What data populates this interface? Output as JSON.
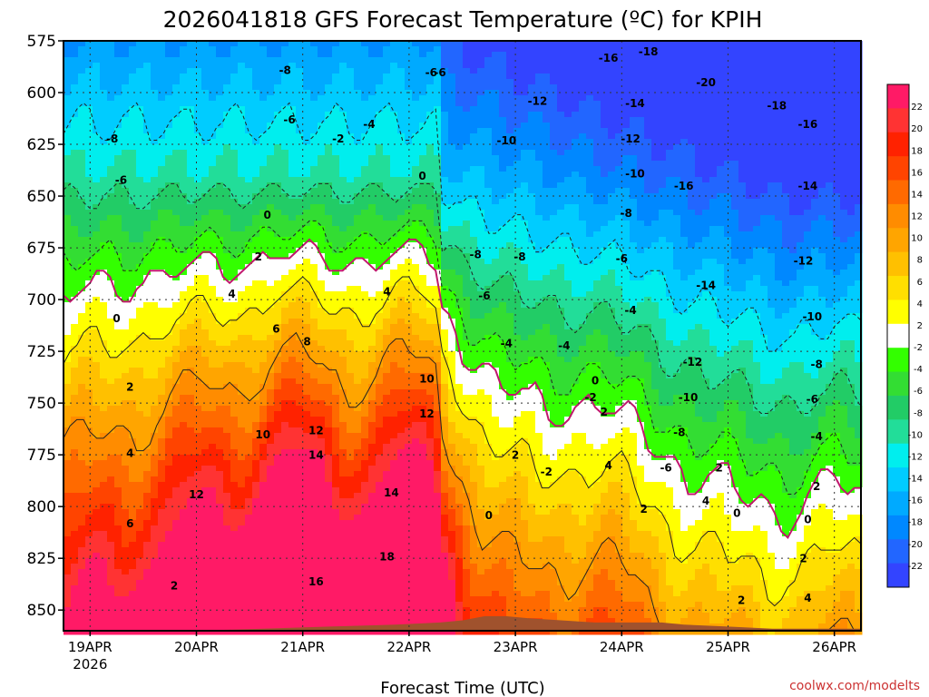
{
  "chart_data": {
    "type": "contour-time-height",
    "title": "2026041818 GFS Forecast Temperature (ºC) for KPIH",
    "xlabel": "Forecast Time (UTC)",
    "credit": "coolwx.com/modelts",
    "y_axis": {
      "quantity": "pressure (hPa)",
      "range": [
        575,
        860
      ],
      "ticks": [
        "575",
        "600",
        "625",
        "650",
        "675",
        "700",
        "725",
        "750",
        "775",
        "800",
        "825",
        "850"
      ]
    },
    "x_axis": {
      "range_hours": [
        0,
        180
      ],
      "ticks": [
        "19APR",
        "20APR",
        "21APR",
        "22APR",
        "23APR",
        "24APR",
        "25APR",
        "26APR"
      ],
      "year_label": "2026"
    },
    "colorbar": {
      "labels": [
        "22",
        "20",
        "18",
        "16",
        "14",
        "12",
        "10",
        "8",
        "6",
        "4",
        "2",
        "-2",
        "-4",
        "-6",
        "-8",
        "-10",
        "-12",
        "-14",
        "-16",
        "-18",
        "-20",
        "-22"
      ],
      "colors": [
        "#ff1a66",
        "#ff3333",
        "#ff2200",
        "#ff4400",
        "#ff6a00",
        "#ff8c00",
        "#ffa500",
        "#ffc000",
        "#ffdf00",
        "#ffff00",
        "#ffffff",
        "#33ff00",
        "#33dd33",
        "#22cc66",
        "#22dd99",
        "#00eeee",
        "#00ccff",
        "#00aaff",
        "#0088ff",
        "#2266ff",
        "#3344ff"
      ]
    },
    "surface_pressure_hpa": [
      860,
      860,
      860,
      859,
      858,
      857,
      856,
      855,
      853,
      853,
      854,
      856,
      856,
      856,
      857,
      858,
      859,
      859,
      859
    ],
    "surface_pressure_hours": [
      0,
      15,
      30,
      45,
      60,
      75,
      85,
      90,
      95,
      100,
      105,
      120,
      130,
      135,
      140,
      150,
      160,
      170,
      180
    ],
    "contour_labels": [
      {
        "t": "-8",
        "hour": 50,
        "p": 591
      },
      {
        "t": "-6",
        "hour": 83,
        "p": 592
      },
      {
        "t": "-8",
        "hour": 11,
        "p": 624
      },
      {
        "t": "-6",
        "hour": 51,
        "p": 615
      },
      {
        "t": "-4",
        "hour": 69,
        "p": 617
      },
      {
        "t": "-2",
        "hour": 62,
        "p": 624
      },
      {
        "t": "-6",
        "hour": 13,
        "p": 644
      },
      {
        "t": "0",
        "hour": 81,
        "p": 642
      },
      {
        "t": "0",
        "hour": 46,
        "p": 661
      },
      {
        "t": "2",
        "hour": 44,
        "p": 681
      },
      {
        "t": "4",
        "hour": 38,
        "p": 699
      },
      {
        "t": "4",
        "hour": 73,
        "p": 698
      },
      {
        "t": "6",
        "hour": 48,
        "p": 716
      },
      {
        "t": "8",
        "hour": 55,
        "p": 722
      },
      {
        "t": "0",
        "hour": 12,
        "p": 711
      },
      {
        "t": "2",
        "hour": 15,
        "p": 744
      },
      {
        "t": "4",
        "hour": 15,
        "p": 776
      },
      {
        "t": "10",
        "hour": 82,
        "p": 740
      },
      {
        "t": "12",
        "hour": 82,
        "p": 757
      },
      {
        "t": "12",
        "hour": 57,
        "p": 765
      },
      {
        "t": "10",
        "hour": 45,
        "p": 767
      },
      {
        "t": "14",
        "hour": 57,
        "p": 777
      },
      {
        "t": "12",
        "hour": 30,
        "p": 796
      },
      {
        "t": "14",
        "hour": 74,
        "p": 795
      },
      {
        "t": "6",
        "hour": 15,
        "p": 810
      },
      {
        "t": "18",
        "hour": 73,
        "p": 826
      },
      {
        "t": "16",
        "hour": 57,
        "p": 838
      },
      {
        "t": "-6",
        "hour": 85,
        "p": 592
      },
      {
        "t": "-8",
        "hour": 93,
        "p": 680
      },
      {
        "t": "-8",
        "hour": 103,
        "p": 681
      },
      {
        "t": "-6",
        "hour": 95,
        "p": 700
      },
      {
        "t": "-4",
        "hour": 100,
        "p": 723
      },
      {
        "t": "-4",
        "hour": 113,
        "p": 724
      },
      {
        "t": "-12",
        "hour": 107,
        "p": 606
      },
      {
        "t": "-10",
        "hour": 100,
        "p": 625
      },
      {
        "t": "-16",
        "hour": 123,
        "p": 585
      },
      {
        "t": "-18",
        "hour": 132,
        "p": 582
      },
      {
        "t": "-14",
        "hour": 129,
        "p": 607
      },
      {
        "t": "-20",
        "hour": 145,
        "p": 597
      },
      {
        "t": "-18",
        "hour": 161,
        "p": 608
      },
      {
        "t": "-16",
        "hour": 168,
        "p": 617
      },
      {
        "t": "-12",
        "hour": 128,
        "p": 624
      },
      {
        "t": "-10",
        "hour": 129,
        "p": 641
      },
      {
        "t": "-16",
        "hour": 140,
        "p": 647
      },
      {
        "t": "-14",
        "hour": 168,
        "p": 647
      },
      {
        "t": "-8",
        "hour": 127,
        "p": 660
      },
      {
        "t": "-6",
        "hour": 126,
        "p": 682
      },
      {
        "t": "-12",
        "hour": 167,
        "p": 683
      },
      {
        "t": "-4",
        "hour": 128,
        "p": 707
      },
      {
        "t": "-14",
        "hour": 145,
        "p": 695
      },
      {
        "t": "-10",
        "hour": 169,
        "p": 710
      },
      {
        "t": "-12",
        "hour": 142,
        "p": 732
      },
      {
        "t": "-8",
        "hour": 170,
        "p": 733
      },
      {
        "t": "-10",
        "hour": 141,
        "p": 749
      },
      {
        "t": "-6",
        "hour": 169,
        "p": 750
      },
      {
        "t": "-8",
        "hour": 139,
        "p": 766
      },
      {
        "t": "-4",
        "hour": 170,
        "p": 768
      },
      {
        "t": "-6",
        "hour": 136,
        "p": 783
      },
      {
        "t": "-2",
        "hour": 119,
        "p": 749
      },
      {
        "t": "-2",
        "hour": 109,
        "p": 785
      },
      {
        "t": "0",
        "hour": 120,
        "p": 741
      },
      {
        "t": "2",
        "hour": 102,
        "p": 777
      },
      {
        "t": "2",
        "hour": 122,
        "p": 756
      },
      {
        "t": "4",
        "hour": 123,
        "p": 782
      },
      {
        "t": "2",
        "hour": 131,
        "p": 803
      },
      {
        "t": "4",
        "hour": 145,
        "p": 799
      },
      {
        "t": "2",
        "hour": 148,
        "p": 783
      },
      {
        "t": "0",
        "hour": 152,
        "p": 805
      },
      {
        "t": "2",
        "hour": 153,
        "p": 847
      },
      {
        "t": "2",
        "hour": 170,
        "p": 792
      },
      {
        "t": "0",
        "hour": 168,
        "p": 808
      },
      {
        "t": "2",
        "hour": 167,
        "p": 827
      },
      {
        "t": "4",
        "hour": 168,
        "p": 846
      },
      {
        "t": "0",
        "hour": 96,
        "p": 806
      },
      {
        "t": "2",
        "hour": 25,
        "p": 840
      }
    ]
  }
}
